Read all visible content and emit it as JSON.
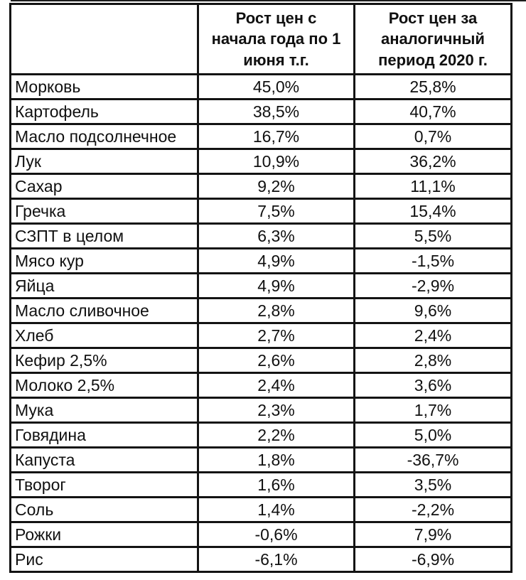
{
  "page": {
    "background": "#ffffff",
    "border_color": "#131313",
    "text_color": "#101010"
  },
  "table": {
    "header": {
      "col_product": "",
      "col_ytd": "Рост цен с\nначала года по 1\nиюня т.г.",
      "col_prev": "Рост цен за\nаналогичный\nпериод 2020 г."
    },
    "rows": [
      {
        "name": "Морковь",
        "ytd": "45,0%",
        "prev": "25,8%"
      },
      {
        "name": "Картофель",
        "ytd": "38,5%",
        "prev": "40,7%"
      },
      {
        "name": "Масло подсолнечное",
        "ytd": "16,7%",
        "prev": "0,7%"
      },
      {
        "name": "Лук",
        "ytd": "10,9%",
        "prev": "36,2%"
      },
      {
        "name": "Сахар",
        "ytd": "9,2%",
        "prev": "11,1%"
      },
      {
        "name": "Гречка",
        "ytd": "7,5%",
        "prev": "15,4%"
      },
      {
        "name": "СЗПТ в целом",
        "ytd": "6,3%",
        "prev": "5,5%"
      },
      {
        "name": "Мясо кур",
        "ytd": "4,9%",
        "prev": "-1,5%"
      },
      {
        "name": "Яйца",
        "ytd": "4,9%",
        "prev": "-2,9%"
      },
      {
        "name": "Масло сливочное",
        "ytd": "2,8%",
        "prev": "9,6%"
      },
      {
        "name": "Хлеб",
        "ytd": "2,7%",
        "prev": "2,4%"
      },
      {
        "name": "Кефир 2,5%",
        "ytd": "2,6%",
        "prev": "2,8%"
      },
      {
        "name": "Молоко 2,5%",
        "ytd": "2,4%",
        "prev": "3,6%"
      },
      {
        "name": "Мука",
        "ytd": "2,3%",
        "prev": "1,7%"
      },
      {
        "name": "Говядина",
        "ytd": "2,2%",
        "prev": "5,0%"
      },
      {
        "name": "Капуста",
        "ytd": "1,8%",
        "prev": "-36,7%"
      },
      {
        "name": "Творог",
        "ytd": "1,6%",
        "prev": "3,5%"
      },
      {
        "name": "Соль",
        "ytd": "1,4%",
        "prev": "-2,2%"
      },
      {
        "name": "Рожки",
        "ytd": "-0,6%",
        "prev": "7,9%"
      },
      {
        "name": "Рис",
        "ytd": "-6,1%",
        "prev": "-6,9%"
      }
    ]
  },
  "chart_data": {
    "type": "table",
    "title": "",
    "unit": "%",
    "categories": [
      "Морковь",
      "Картофель",
      "Масло подсолнечное",
      "Лук",
      "Сахар",
      "Гречка",
      "СЗПТ в целом",
      "Мясо кур",
      "Яйца",
      "Масло сливочное",
      "Хлеб",
      "Кефир 2,5%",
      "Молоко 2,5%",
      "Мука",
      "Говядина",
      "Капуста",
      "Творог",
      "Соль",
      "Рожки",
      "Рис"
    ],
    "series": [
      {
        "name": "Рост цен с начала года по 1 июня т.г.",
        "values": [
          45.0,
          38.5,
          16.7,
          10.9,
          9.2,
          7.5,
          6.3,
          4.9,
          4.9,
          2.8,
          2.7,
          2.6,
          2.4,
          2.3,
          2.2,
          1.8,
          1.6,
          1.4,
          -0.6,
          -6.1
        ]
      },
      {
        "name": "Рост цен за аналогичный период 2020 г.",
        "values": [
          25.8,
          40.7,
          0.7,
          36.2,
          11.1,
          15.4,
          5.5,
          -1.5,
          -2.9,
          9.6,
          2.4,
          2.8,
          3.6,
          1.7,
          5.0,
          -36.7,
          3.5,
          -2.2,
          7.9,
          -6.9
        ]
      }
    ]
  }
}
